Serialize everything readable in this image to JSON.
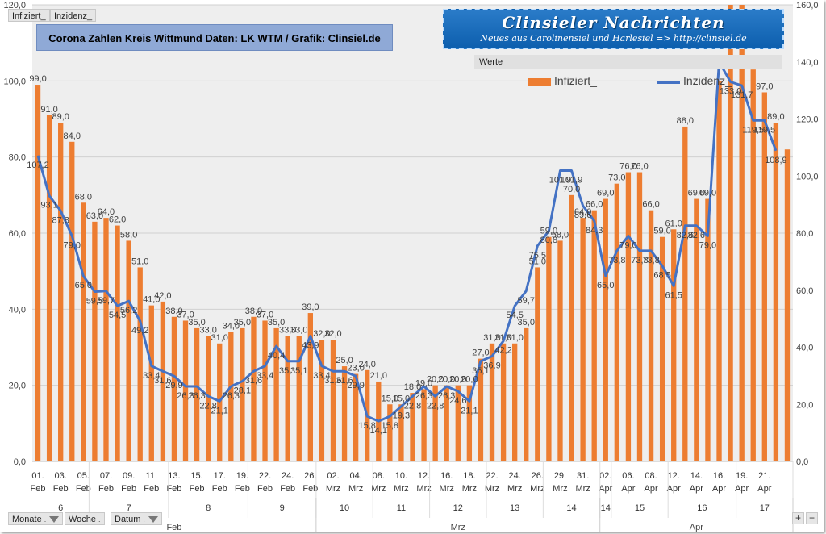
{
  "chart_data": {
    "type": "bar+line",
    "title": "Corona Zahlen Kreis Wittmund  Daten: LK WTM / Grafik: Clinsiel.de",
    "brand_line1": "Clinsieler Nachrichten",
    "brand_line2": "Neues aus Carolinensiel und Harlesiel  => http://clinsiel.de",
    "werte_label": "Werte",
    "buttons": {
      "top": [
        "Infiziert_",
        "Inzidenz_"
      ],
      "bottom": [
        "Monate",
        "Woche",
        "Datum"
      ]
    },
    "legend_position": "top-right",
    "grid": true,
    "series": [
      {
        "name": "Infiziert_",
        "axis": "left",
        "values": [
          99.0,
          91.0,
          89.0,
          84.0,
          68.0,
          63.0,
          64.0,
          62.0,
          58.0,
          51.0,
          41.0,
          42.0,
          38.0,
          37.0,
          35.0,
          33.0,
          31.0,
          34.0,
          35.0,
          38.0,
          37.0,
          35.0,
          33.0,
          33.0,
          39.0,
          32.0,
          32.0,
          25.0,
          23.0,
          24.0,
          21.0,
          15.0,
          15.0,
          18.0,
          19.0,
          20.0,
          20.0,
          20.0,
          20.0,
          27.0,
          31.0,
          31.0,
          31.0,
          35.0,
          51.0,
          59.0,
          58.0,
          70.0,
          64.0,
          66.0,
          69.0,
          73.0,
          76.0,
          76.0,
          66.0,
          59.0,
          61.0,
          88.0,
          69.0,
          69.0,
          100.0,
          126.0,
          133.0,
          103.0,
          97.0,
          89.0,
          82.0
        ]
      },
      {
        "name": "Inzidenz_",
        "axis": "right",
        "values": [
          107.2,
          93.1,
          87.8,
          79.0,
          65.0,
          59.5,
          59.7,
          54.5,
          56.2,
          49.2,
          33.4,
          31.6,
          29.9,
          26.3,
          26.3,
          22.8,
          21.1,
          26.3,
          28.1,
          31.6,
          33.4,
          40.4,
          35.1,
          35.1,
          43.9,
          33.4,
          31.6,
          31.6,
          29.9,
          15.8,
          14.1,
          15.8,
          19.3,
          22.8,
          26.3,
          22.8,
          26.3,
          24.6,
          21.1,
          35.1,
          36.9,
          42.2,
          54.5,
          59.7,
          75.5,
          80.8,
          101.9,
          101.9,
          89.6,
          84.3,
          65.0,
          73.8,
          79.0,
          73.8,
          73.8,
          68.5,
          61.5,
          82.6,
          82.6,
          79.0,
          140.0,
          133.0,
          131.7,
          119.5,
          119.5,
          108.9
        ]
      }
    ],
    "labels_infiziert": [
      "99,0",
      "91,0",
      "89,0",
      "84,0",
      "68,0",
      "63,0",
      "64,0",
      "62,0",
      "58,0",
      "51,0",
      "41,0",
      "42,0",
      "38,0",
      "37,0",
      "35,0",
      "33,0",
      "31,0",
      "34,0",
      "35,0",
      "38,0",
      "37,0",
      "35,0",
      "33,0",
      "33,0",
      "39,0",
      "32,0",
      "32,0",
      "25,0",
      "23,0",
      "24,0",
      "21,0",
      "15,0",
      "15,0",
      "18,0",
      "19,0",
      "20,0",
      "20,0",
      "20,0",
      "20,0",
      "27,0",
      "31,0",
      "31,0",
      "31,0",
      "35,0",
      "51,0",
      "59,0",
      "58,0",
      "70,0",
      "64,0",
      "66,0",
      "69,0",
      "73,0",
      "76,0",
      "76,0",
      "66,0",
      "59,0",
      "61,0",
      "88,0",
      "69,0",
      "69,0",
      "",
      "",
      "",
      "",
      "97,0",
      "89,0",
      ""
    ],
    "labels_inzidenz": [
      "107,2",
      "93,1",
      "87,8",
      "79,0",
      "65,0",
      "59,5",
      "59,7",
      "54,5",
      "56,2",
      "49,2",
      "33,4",
      "31,6",
      "29,9",
      "26,3",
      "26,3",
      "22,8",
      "21,1",
      "26,3",
      "28,1",
      "31,6",
      "33,4",
      "40,4",
      "35,1",
      "35,1",
      "43,9",
      "33,4",
      "31,6",
      "31,6",
      "29,9",
      "15,8",
      "14,1",
      "15,8",
      "19,3",
      "22,8",
      "26,3",
      "22,8",
      "26,3",
      "24,6",
      "21,1",
      "35,1",
      "36,9",
      "42,2",
      "54,5",
      "59,7",
      "75,5",
      "80,8",
      "101,9",
      "101,9",
      "89,6",
      "84,3",
      "65,0",
      "73,8",
      "79,0",
      "73,8",
      "73,8",
      "68,5",
      "61,5",
      "82,6",
      "82,6",
      "79,0",
      "",
      "133,0",
      "131,7",
      "119,5",
      "119,5",
      "108,9"
    ],
    "y_left": {
      "min": 0,
      "max": 120,
      "step": 20,
      "ticks": [
        "0,0",
        "20,0",
        "40,0",
        "60,0",
        "80,0",
        "100,0",
        "120,0"
      ]
    },
    "y_right": {
      "min": 0,
      "max": 160,
      "step": 20,
      "ticks": [
        "0,0",
        "20,0",
        "40,0",
        "60,0",
        "80,0",
        "100,0",
        "120,0",
        "140,0",
        "160,0"
      ]
    },
    "x_tick_labels": [
      {
        "i": 0,
        "day": "01.",
        "mon": "Feb"
      },
      {
        "i": 2,
        "day": "03.",
        "mon": "Feb"
      },
      {
        "i": 4,
        "day": "05.",
        "mon": "Feb"
      },
      {
        "i": 6,
        "day": "07.",
        "mon": "Feb"
      },
      {
        "i": 8,
        "day": "09.",
        "mon": "Feb"
      },
      {
        "i": 10,
        "day": "11.",
        "mon": "Feb"
      },
      {
        "i": 12,
        "day": "13.",
        "mon": "Feb"
      },
      {
        "i": 14,
        "day": "15.",
        "mon": "Feb"
      },
      {
        "i": 16,
        "day": "17.",
        "mon": "Feb"
      },
      {
        "i": 18,
        "day": "19.",
        "mon": "Feb"
      },
      {
        "i": 20,
        "day": "22.",
        "mon": "Feb"
      },
      {
        "i": 22,
        "day": "24.",
        "mon": "Feb"
      },
      {
        "i": 24,
        "day": "26.",
        "mon": "Feb"
      },
      {
        "i": 26,
        "day": "02.",
        "mon": "Mrz"
      },
      {
        "i": 28,
        "day": "04.",
        "mon": "Mrz"
      },
      {
        "i": 30,
        "day": "08.",
        "mon": "Mrz"
      },
      {
        "i": 32,
        "day": "10.",
        "mon": "Mrz"
      },
      {
        "i": 34,
        "day": "12.",
        "mon": "Mrz"
      },
      {
        "i": 36,
        "day": "16.",
        "mon": "Mrz"
      },
      {
        "i": 38,
        "day": "18.",
        "mon": "Mrz"
      },
      {
        "i": 40,
        "day": "22.",
        "mon": "Mrz"
      },
      {
        "i": 42,
        "day": "24.",
        "mon": "Mrz"
      },
      {
        "i": 44,
        "day": "26.",
        "mon": "Mrz"
      },
      {
        "i": 46,
        "day": "29.",
        "mon": "Mrz"
      },
      {
        "i": 48,
        "day": "31.",
        "mon": "Mrz"
      },
      {
        "i": 50,
        "day": "02.",
        "mon": "Apr"
      },
      {
        "i": 52,
        "day": "06.",
        "mon": "Apr"
      },
      {
        "i": 54,
        "day": "08.",
        "mon": "Apr"
      },
      {
        "i": 56,
        "day": "12.",
        "mon": "Apr"
      },
      {
        "i": 58,
        "day": "14.",
        "mon": "Apr"
      },
      {
        "i": 60,
        "day": "16.",
        "mon": "Apr"
      },
      {
        "i": 62,
        "day": "19.",
        "mon": "Apr"
      },
      {
        "i": 64,
        "day": "21.",
        "mon": "Apr"
      }
    ],
    "weeks": [
      {
        "label": "6",
        "start": 0,
        "end": 5
      },
      {
        "label": "7",
        "start": 5,
        "end": 12
      },
      {
        "label": "8",
        "start": 12,
        "end": 19
      },
      {
        "label": "9",
        "start": 19,
        "end": 25
      },
      {
        "label": "10",
        "start": 25,
        "end": 30
      },
      {
        "label": "11",
        "start": 30,
        "end": 35
      },
      {
        "label": "12",
        "start": 35,
        "end": 40
      },
      {
        "label": "13",
        "start": 40,
        "end": 45
      },
      {
        "label": "14",
        "start": 45,
        "end": 50
      },
      {
        "label": "14",
        "start": 50,
        "end": 51
      },
      {
        "label": "15",
        "start": 51,
        "end": 56
      },
      {
        "label": "16",
        "start": 56,
        "end": 62
      },
      {
        "label": "17",
        "start": 62,
        "end": 67
      }
    ],
    "months": [
      {
        "label": "Feb",
        "start": 0,
        "end": 25
      },
      {
        "label": "Mrz",
        "start": 25,
        "end": 50
      },
      {
        "label": "Apr",
        "start": 50,
        "end": 67
      }
    ],
    "colors": {
      "bar": "#ed7d31",
      "line": "#4472c4",
      "plot_bg": "#eeeeee",
      "grid": "#d0d0d0"
    }
  }
}
